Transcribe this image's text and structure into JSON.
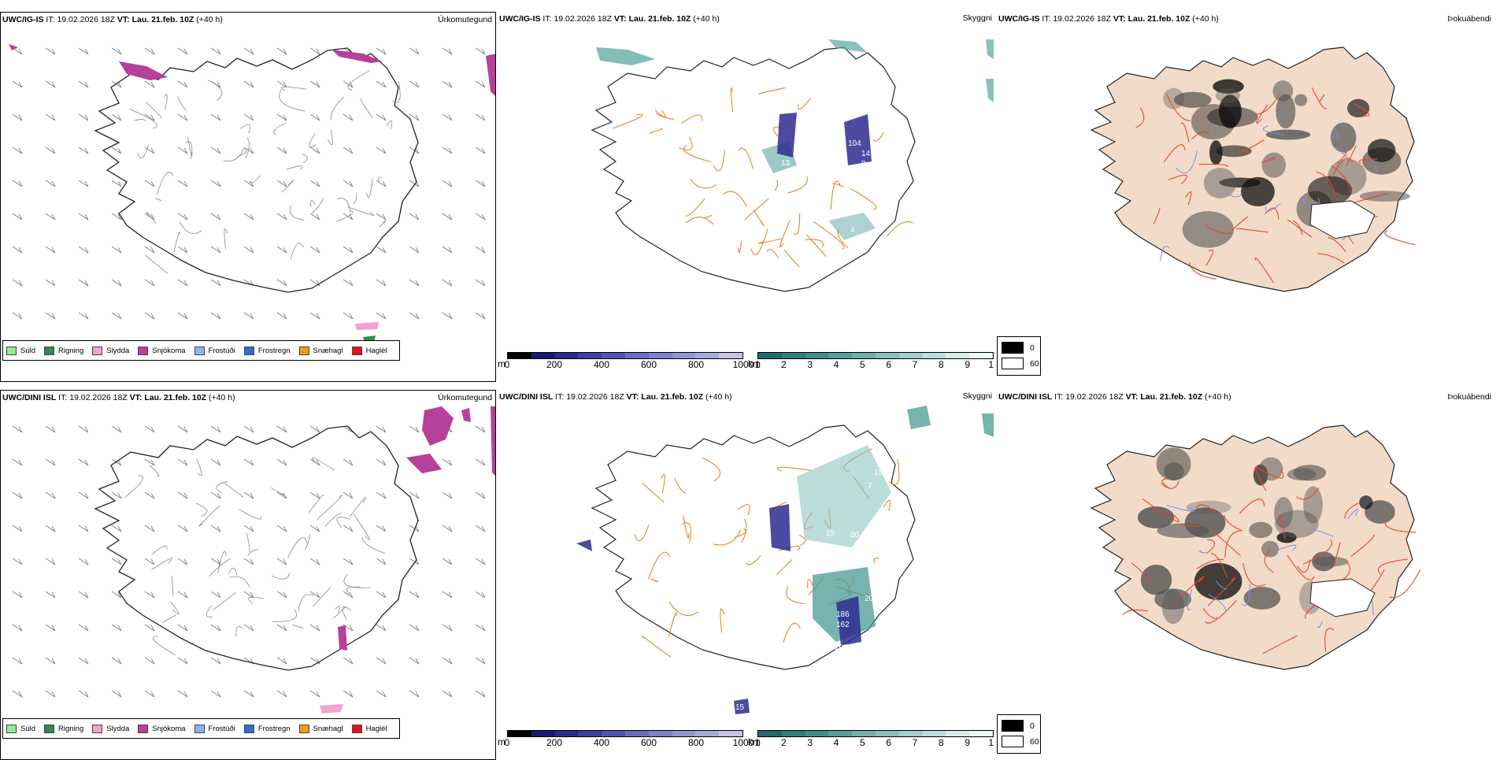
{
  "rows": [
    {
      "model": "UWC/IG-IS",
      "it_label": "IT:",
      "it_value": "19.02.2026 18Z",
      "vt_label": "VT:",
      "vt_value": "Lau. 21.feb. 10Z",
      "lead": "(+40 h)"
    },
    {
      "model": "UWC/DINI ISL",
      "it_label": "IT:",
      "it_value": "19.02.2026 18Z",
      "vt_label": "VT:",
      "vt_value": "Lau. 21.feb. 10Z",
      "lead": "(+40 h)"
    }
  ],
  "panel_titles": {
    "precip": "Úrkomutegund",
    "cloud": "Skyggni",
    "fog": "Þokuábendi"
  },
  "precip_legend": [
    {
      "label": "Súld",
      "color": "#90ee90"
    },
    {
      "label": "Rigning",
      "color": "#2e8b57"
    },
    {
      "label": "Slydda",
      "color": "#f4a0d0"
    },
    {
      "label": "Snjókoma",
      "color": "#b7409a"
    },
    {
      "label": "Frostúði",
      "color": "#87b7f0"
    },
    {
      "label": "Frostregn",
      "color": "#2f6fd1"
    },
    {
      "label": "Snæhagl",
      "color": "#f39c12"
    },
    {
      "label": "Haglél",
      "color": "#e8101a"
    }
  ],
  "ceiling_scale": {
    "unit": "m",
    "ticks": [
      "0",
      "200",
      "400",
      "600",
      "800",
      "1000"
    ],
    "colors": [
      "#000000",
      "#1a1a6e",
      "#2b2b90",
      "#3d3da8",
      "#5252b8",
      "#6b6bc4",
      "#8080cc",
      "#9494d4",
      "#a8a8dc",
      "#c4c4e8"
    ]
  },
  "visibility_scale": {
    "unit": "km",
    "ticks": [
      "1",
      "2",
      "3",
      "4",
      "5",
      "6",
      "7",
      "8",
      "9",
      "10"
    ],
    "colors": [
      "#1f6e6e",
      "#2f7f7a",
      "#3f8f88",
      "#55a09a",
      "#6eb0aa",
      "#88c0ba",
      "#a2cfca",
      "#bcdeda",
      "#d6ecea",
      "#eef7f6"
    ]
  },
  "fog_legend": [
    {
      "label": "0",
      "color": "#000000"
    },
    {
      "label": "60",
      "color": "#ffffff"
    }
  ],
  "map_labels": {
    "row1": [
      "104",
      "13",
      "14",
      "8",
      "4",
      "2"
    ],
    "row2": [
      "15",
      "7",
      "15",
      "80",
      "20",
      "186",
      "162",
      "109",
      "15"
    ]
  },
  "accents": {
    "roads_orange": "#e8862a",
    "roads_red": "#e8442c",
    "land_fog": "#f2dcc9",
    "rivers_blue": "#7a8ee8"
  }
}
